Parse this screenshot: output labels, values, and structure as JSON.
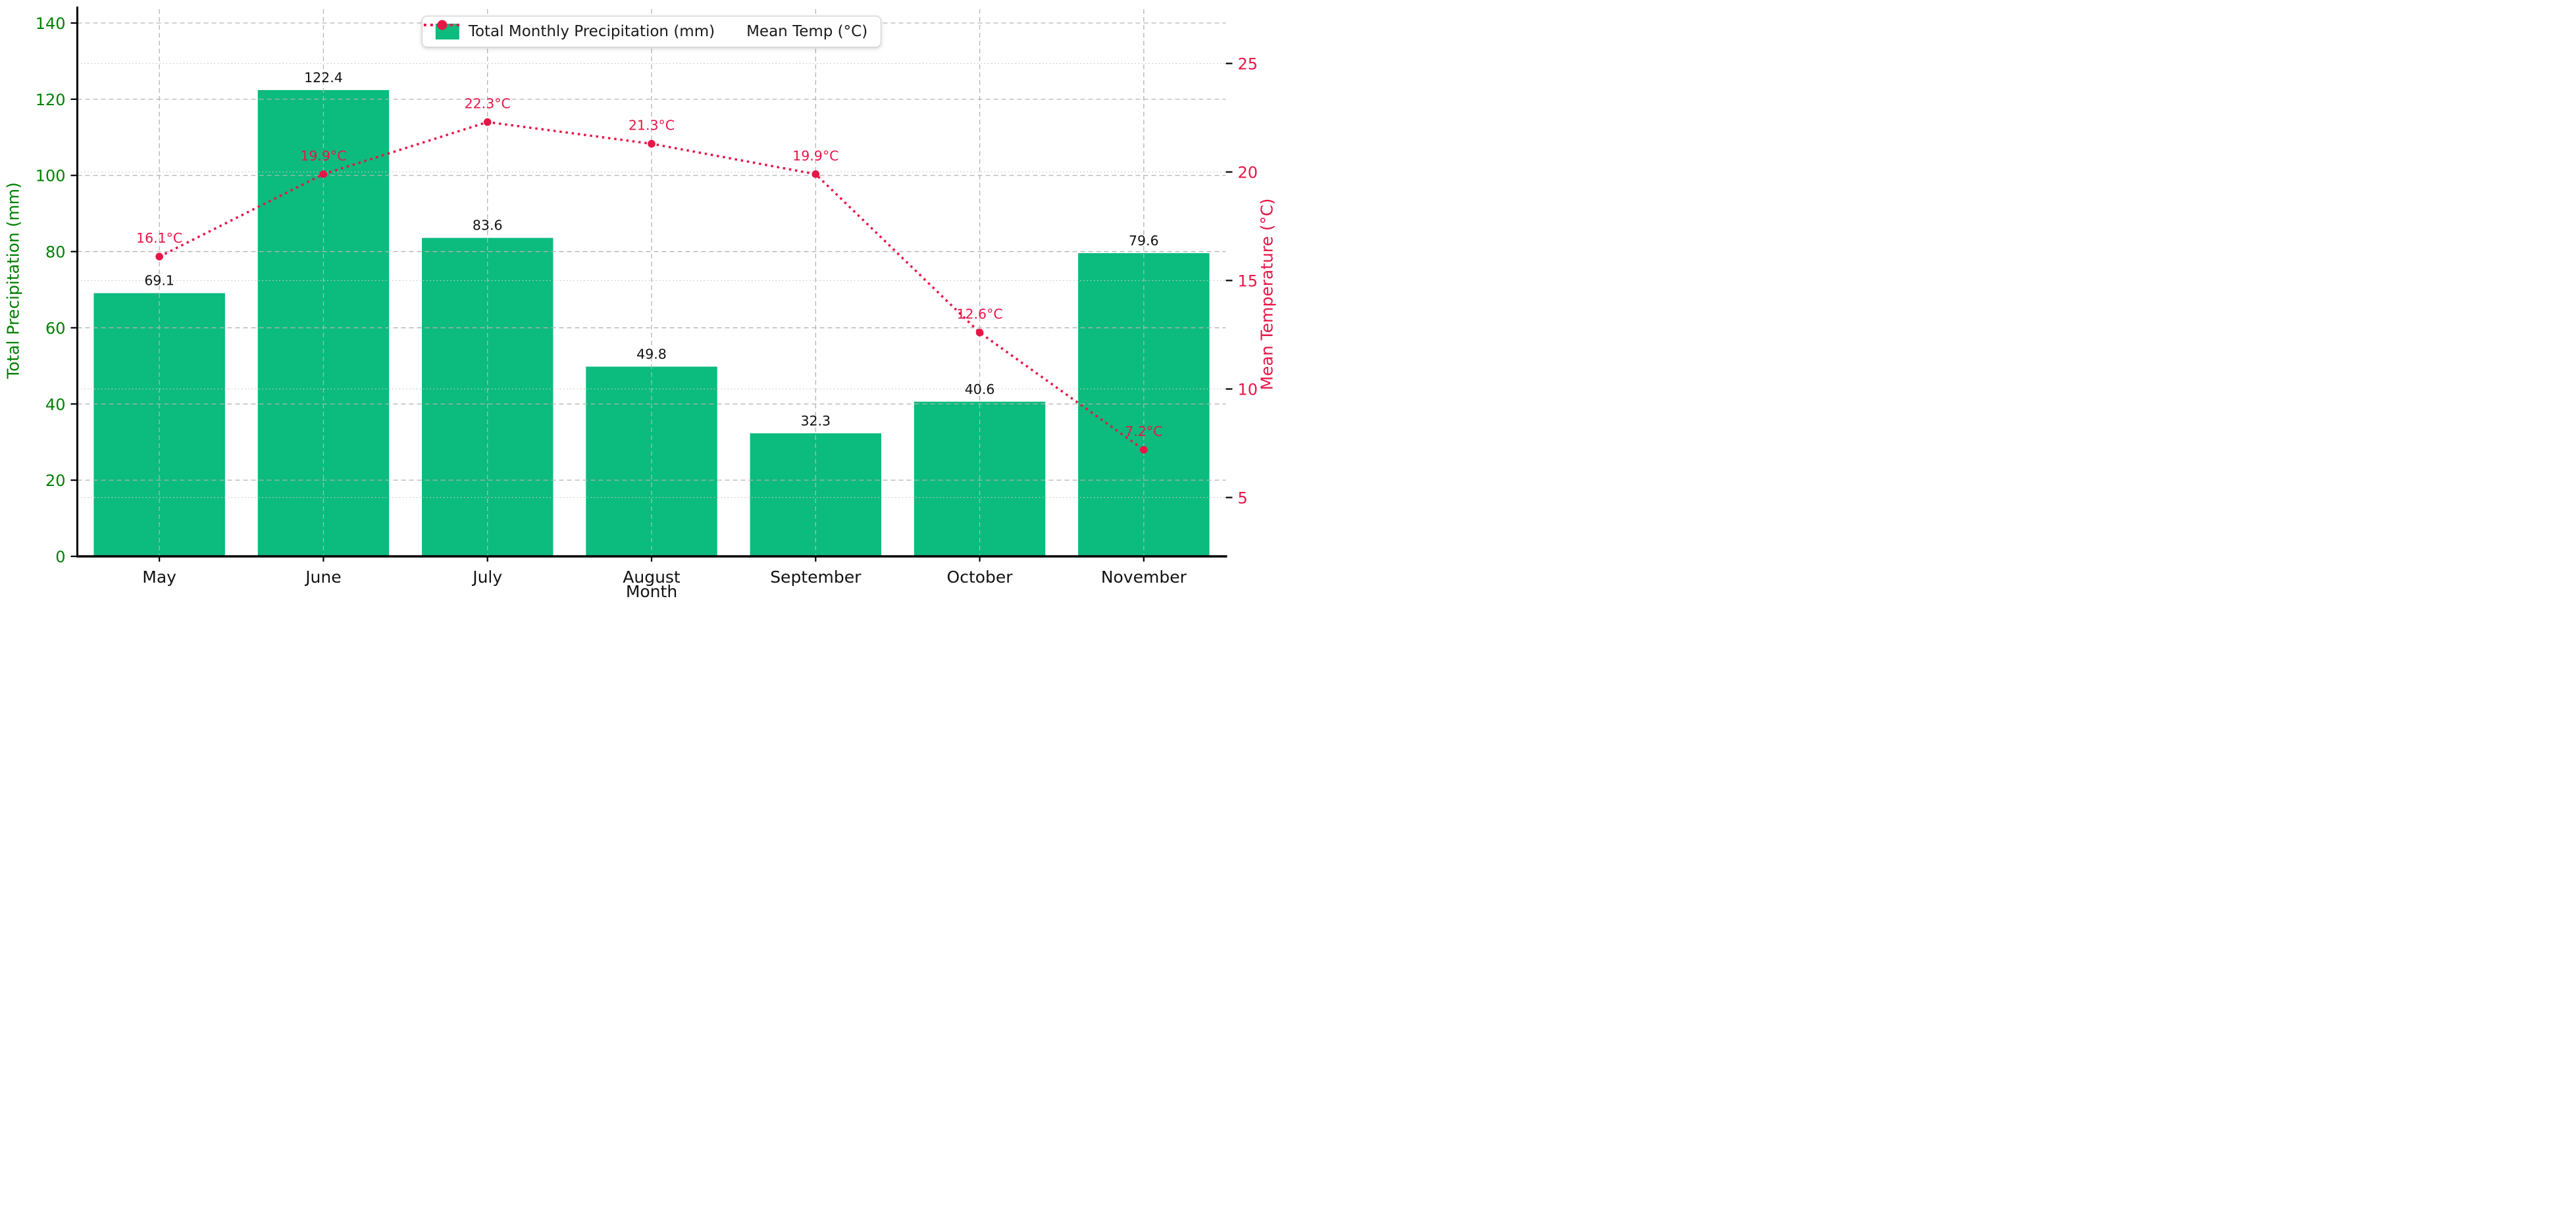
{
  "chart_data": {
    "type": "bar",
    "categories": [
      "May",
      "June",
      "July",
      "August",
      "September",
      "October",
      "November"
    ],
    "series": [
      {
        "name": "Total Monthly Precipitation (mm)",
        "type": "bar",
        "axis": "left",
        "color": "#0cbb7e",
        "values": [
          69.1,
          122.4,
          83.6,
          49.8,
          32.3,
          40.6,
          79.6
        ],
        "value_labels": [
          "69.1",
          "122.4",
          "83.6",
          "49.8",
          "32.3",
          "40.6",
          "79.6"
        ]
      },
      {
        "name": "Mean Temp (°C)",
        "type": "line",
        "line_style": "dotted",
        "marker": "circle",
        "axis": "right",
        "color": "#e81547",
        "values": [
          16.1,
          19.9,
          22.3,
          21.3,
          19.9,
          12.6,
          7.2
        ],
        "value_labels": [
          "16.1°C",
          "19.9°C",
          "22.3°C",
          "21.3°C",
          "19.9°C",
          "12.6°C",
          "7.2°C"
        ]
      }
    ],
    "xlabel": "Month",
    "ylabel_left": "Total Precipitation (mm)",
    "ylabel_right": "Mean Temperature (°C)",
    "y_left": {
      "min": 0,
      "max": 140,
      "ticks": [
        0,
        20,
        40,
        60,
        80,
        100,
        120,
        140
      ],
      "tick_color": "#008000"
    },
    "y_right": {
      "ticks": [
        5,
        10,
        15,
        20,
        25
      ],
      "range_approx": [
        2.3,
        26.9
      ],
      "tick_color": "#e81547"
    },
    "grid": {
      "horizontal_major": "gray dashed at left-axis ticks",
      "horizontal_minor": "light dotted at right-axis ticks",
      "vertical": "gray dashed at each month"
    },
    "legend": {
      "position": "top center",
      "entries": [
        "Total Monthly Precipitation (mm)",
        "Mean Temp (°C)"
      ]
    },
    "colors": {
      "bar": "#0cbb7e",
      "left_axis_text": "#008000",
      "temp_line": "#e81547",
      "spine": "#000000",
      "grid_dashed": "#b3b3b3",
      "grid_dotted": "#c9c9c9",
      "value_label": "#111111"
    }
  }
}
